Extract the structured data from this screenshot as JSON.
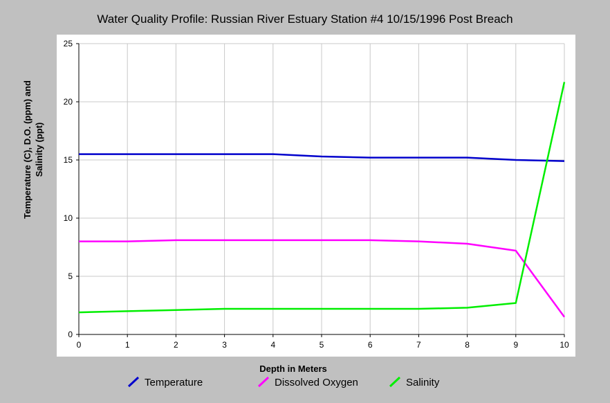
{
  "chart_data": {
    "type": "line",
    "title": "Water Quality Profile: Russian River Estuary Station #4 10/15/1996 Post Breach",
    "xlabel": "Depth in Meters",
    "ylabel_line1": "Temperature (C), D.O. (ppm) and",
    "ylabel_line2": "Salinity (ppt)",
    "xlim": [
      0,
      10
    ],
    "ylim": [
      0,
      25
    ],
    "x_ticks": [
      "0",
      "1",
      "2",
      "3",
      "4",
      "5",
      "6",
      "7",
      "8",
      "9",
      "10"
    ],
    "y_ticks": [
      "0",
      "5",
      "10",
      "15",
      "20",
      "25"
    ],
    "grid": true,
    "legend_position": "bottom",
    "series": [
      {
        "name": "Temperature",
        "color": "#0000cc",
        "points": [
          [
            0,
            15.5
          ],
          [
            1,
            15.5
          ],
          [
            2,
            15.5
          ],
          [
            3,
            15.5
          ],
          [
            4,
            15.5
          ],
          [
            5,
            15.3
          ],
          [
            6,
            15.2
          ],
          [
            7,
            15.2
          ],
          [
            8,
            15.2
          ],
          [
            9,
            15.0
          ],
          [
            10,
            14.9
          ]
        ]
      },
      {
        "name": "Dissolved Oxygen",
        "color": "#ff00ff",
        "points": [
          [
            0,
            8.0
          ],
          [
            1,
            8.0
          ],
          [
            2,
            8.1
          ],
          [
            3,
            8.1
          ],
          [
            4,
            8.1
          ],
          [
            5,
            8.1
          ],
          [
            6,
            8.1
          ],
          [
            7,
            8.0
          ],
          [
            8,
            7.8
          ],
          [
            9,
            7.2
          ],
          [
            10,
            1.5
          ]
        ]
      },
      {
        "name": "Salinity",
        "color": "#00ee00",
        "points": [
          [
            0,
            1.9
          ],
          [
            1,
            2.0
          ],
          [
            2,
            2.1
          ],
          [
            3,
            2.2
          ],
          [
            4,
            2.2
          ],
          [
            5,
            2.2
          ],
          [
            6,
            2.2
          ],
          [
            7,
            2.2
          ],
          [
            8,
            2.3
          ],
          [
            9,
            2.7
          ],
          [
            10,
            21.7
          ]
        ]
      }
    ]
  }
}
